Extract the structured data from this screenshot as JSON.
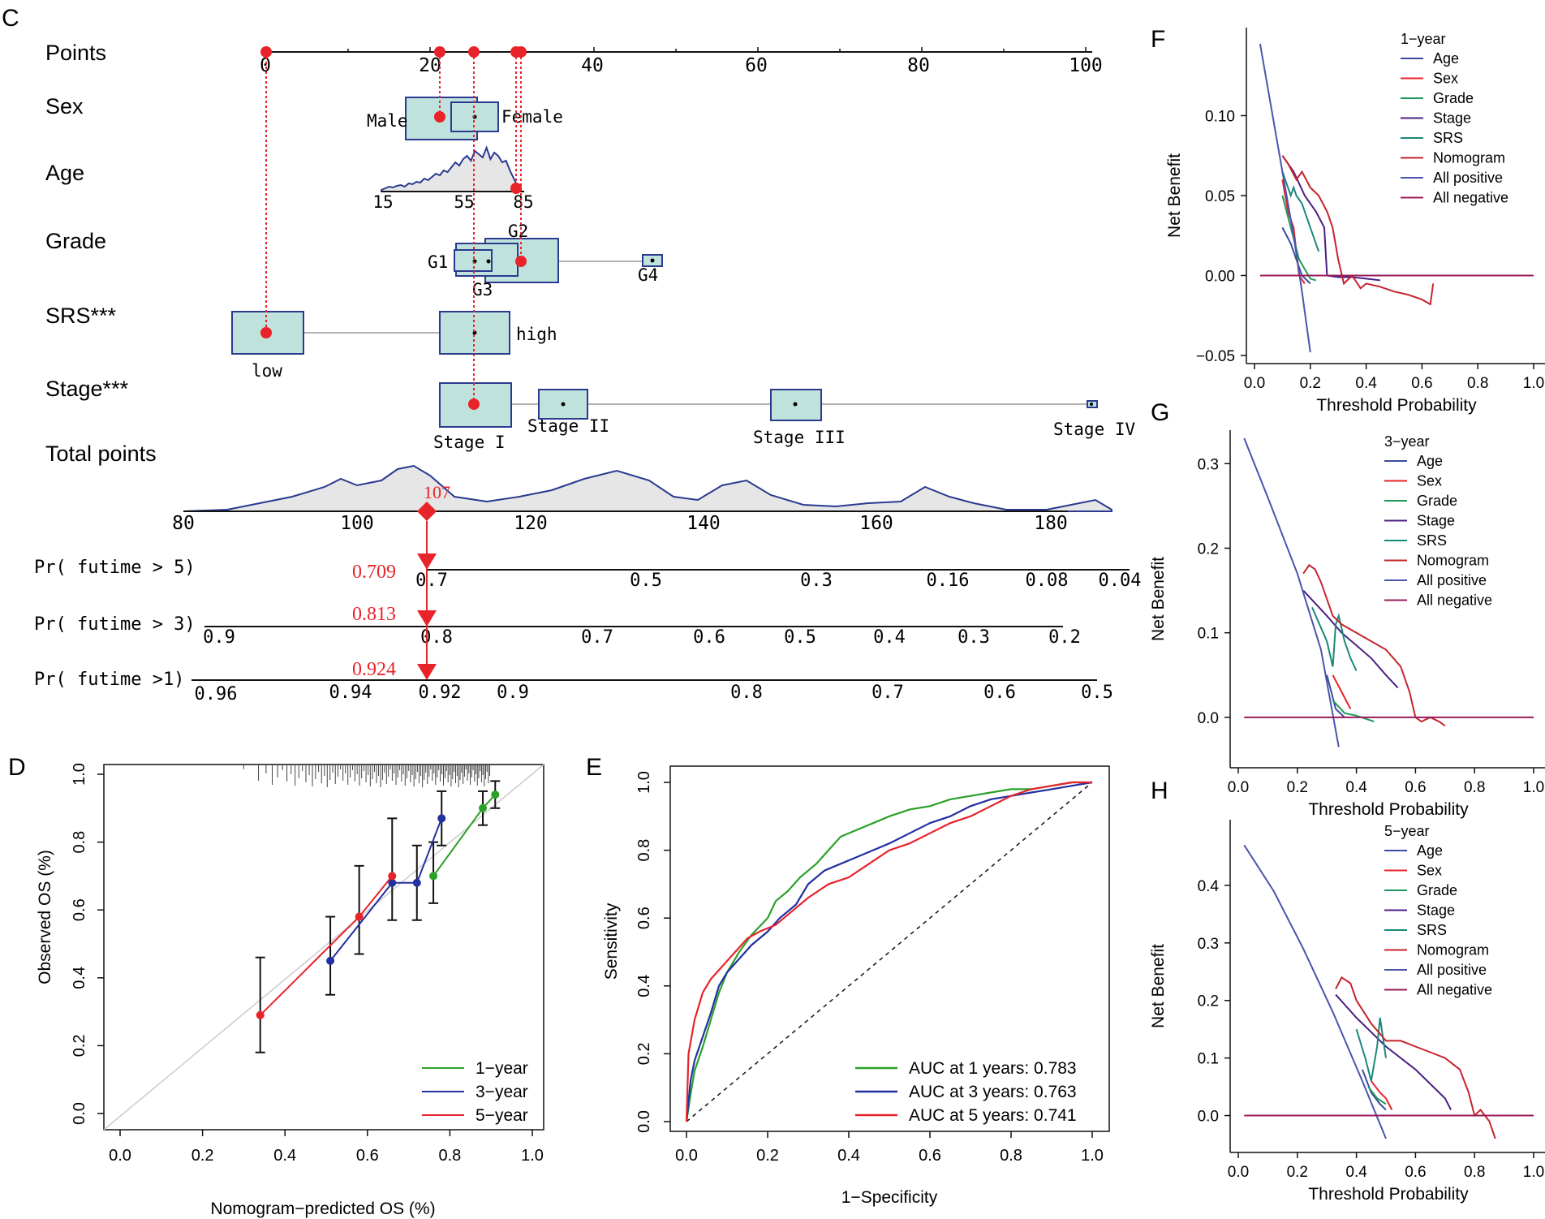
{
  "panel_labels": {
    "C": "C",
    "D": "D",
    "E": "E",
    "F": "F",
    "G": "G",
    "H": "H"
  },
  "colors": {
    "red": "#e8232a",
    "navy": "#2b3a8f",
    "box_fill": "#bfe3dc",
    "green": "#2aa12b",
    "blue": "#2230a0",
    "teal": "#19897a",
    "purple": "#4b1f84",
    "magenta": "#9a1a5a",
    "dcaRed": "#c4242c",
    "ap": "#4a54ad"
  },
  "chart_data": [
    {
      "type": "nomogram",
      "panel": "C",
      "rows": [
        "Points",
        "Sex",
        "Age",
        "Grade",
        "SRS***",
        "Stage***",
        "Total points"
      ],
      "points_axis": {
        "min": 0,
        "max": 100,
        "ticks": [
          "0",
          "20",
          "40",
          "60",
          "80",
          "100"
        ]
      },
      "sex": {
        "categories": [
          "Male",
          "Female"
        ]
      },
      "age": {
        "ticks": [
          "15",
          "55",
          "85"
        ]
      },
      "grade": {
        "categories": [
          "G1",
          "G2",
          "G3",
          "G4"
        ]
      },
      "srs": {
        "categories": [
          "low",
          "high"
        ]
      },
      "stage": {
        "categories": [
          "Stage I",
          "Stage II",
          "Stage III",
          "Stage IV"
        ]
      },
      "total_points": {
        "ticks": [
          "80",
          "100",
          "120",
          "140",
          "160",
          "180"
        ],
        "selected": "107"
      },
      "probabilities": [
        {
          "label": "Pr( futime > 5)",
          "value": "0.709",
          "ticks": [
            "0.7",
            "0.5",
            "0.3",
            "0.16",
            "0.08",
            "0.04"
          ]
        },
        {
          "label": "Pr( futime > 3)",
          "value": "0.813",
          "ticks": [
            "0.9",
            "0.8",
            "0.7",
            "0.6",
            "0.5",
            "0.4",
            "0.3",
            "0.2"
          ]
        },
        {
          "label": "Pr( futime >1)",
          "value": "0.924",
          "ticks": [
            "0.96",
            "0.94",
            "0.92",
            "0.9",
            "0.8",
            "0.7",
            "0.6",
            "0.5"
          ]
        }
      ]
    },
    {
      "type": "line",
      "panel": "D",
      "xlabel": "Nomogram−predicted OS (%)",
      "ylabel": "Observed OS (%)",
      "xlim": [
        0,
        1
      ],
      "ylim": [
        0,
        1
      ],
      "ticks": [
        "0.0",
        "0.2",
        "0.4",
        "0.6",
        "0.8",
        "1.0"
      ],
      "series": [
        {
          "name": "1−year",
          "x": [
            0.76,
            0.88,
            0.91
          ],
          "y": [
            0.7,
            0.9,
            0.94
          ]
        },
        {
          "name": "3−year",
          "x": [
            0.51,
            0.66,
            0.72,
            0.78
          ],
          "y": [
            0.45,
            0.68,
            0.68,
            0.87
          ]
        },
        {
          "name": "5−year",
          "x": [
            0.34,
            0.58,
            0.66
          ],
          "y": [
            0.29,
            0.58,
            0.7
          ]
        }
      ]
    },
    {
      "type": "line",
      "panel": "E",
      "xlabel": "1−Specificity",
      "ylabel": "Sensitivity",
      "xlim": [
        0,
        1
      ],
      "ylim": [
        0,
        1
      ],
      "ticks": [
        "0.0",
        "0.2",
        "0.4",
        "0.6",
        "0.8",
        "1.0"
      ],
      "series": [
        {
          "name": "AUC at 1 years: 0.783",
          "x": [
            0,
            0.01,
            0.02,
            0.04,
            0.06,
            0.08,
            0.1,
            0.13,
            0.16,
            0.2,
            0.22,
            0.25,
            0.28,
            0.32,
            0.35,
            0.38,
            0.42,
            0.46,
            0.5,
            0.55,
            0.6,
            0.65,
            0.7,
            0.75,
            0.8,
            0.85,
            0.9,
            0.95,
            1.0
          ],
          "y": [
            0,
            0.08,
            0.15,
            0.22,
            0.3,
            0.38,
            0.44,
            0.5,
            0.55,
            0.6,
            0.65,
            0.68,
            0.72,
            0.76,
            0.8,
            0.84,
            0.86,
            0.88,
            0.9,
            0.92,
            0.93,
            0.95,
            0.96,
            0.97,
            0.98,
            0.98,
            0.99,
            1.0,
            1.0
          ]
        },
        {
          "name": "AUC at 3 years: 0.763",
          "x": [
            0,
            0.01,
            0.02,
            0.04,
            0.06,
            0.08,
            0.1,
            0.13,
            0.16,
            0.2,
            0.23,
            0.27,
            0.3,
            0.34,
            0.38,
            0.42,
            0.46,
            0.5,
            0.55,
            0.6,
            0.65,
            0.7,
            0.75,
            0.8,
            0.85,
            0.9,
            0.95,
            1.0
          ],
          "y": [
            0,
            0.12,
            0.18,
            0.25,
            0.32,
            0.4,
            0.44,
            0.48,
            0.52,
            0.56,
            0.6,
            0.64,
            0.7,
            0.74,
            0.76,
            0.78,
            0.8,
            0.82,
            0.85,
            0.88,
            0.9,
            0.93,
            0.95,
            0.96,
            0.97,
            0.98,
            0.99,
            1.0
          ]
        },
        {
          "name": "AUC at 5 years: 0.741",
          "x": [
            0,
            0.005,
            0.02,
            0.04,
            0.06,
            0.09,
            0.12,
            0.15,
            0.18,
            0.22,
            0.26,
            0.3,
            0.35,
            0.4,
            0.45,
            0.5,
            0.55,
            0.6,
            0.65,
            0.7,
            0.75,
            0.8,
            0.85,
            0.9,
            0.95,
            1.0
          ],
          "y": [
            0,
            0.2,
            0.3,
            0.38,
            0.42,
            0.46,
            0.5,
            0.54,
            0.56,
            0.58,
            0.62,
            0.66,
            0.7,
            0.72,
            0.76,
            0.8,
            0.82,
            0.85,
            0.88,
            0.9,
            0.93,
            0.96,
            0.98,
            0.99,
            1.0,
            1.0
          ]
        }
      ]
    },
    {
      "type": "line",
      "panel": "F",
      "title": "1−year",
      "xlabel": "Threshold Probability",
      "ylabel": "Net Benefit",
      "xlim": [
        0,
        1
      ],
      "ylim": [
        -0.05,
        0.15
      ],
      "xticks": [
        "0.0",
        "0.2",
        "0.4",
        "0.6",
        "0.8",
        "1.0"
      ],
      "yticks": [
        {
          "v": -0.05,
          "label": "−0.05"
        },
        {
          "v": 0,
          "label": "0.00"
        },
        {
          "v": 0.05,
          "label": "0.05"
        },
        {
          "v": 0.1,
          "label": "0.10"
        }
      ],
      "series": [
        {
          "name": "Age",
          "x": [
            0.1,
            0.13,
            0.15,
            0.17,
            0.2
          ],
          "y": [
            0.03,
            0.02,
            0.01,
            0.0,
            -0.005
          ]
        },
        {
          "name": "Sex",
          "x": [
            0.1,
            0.12,
            0.14,
            0.16,
            0.18
          ],
          "y": [
            0.06,
            0.04,
            0.03,
            0.0,
            -0.005
          ]
        },
        {
          "name": "Grade",
          "x": [
            0.1,
            0.13,
            0.16,
            0.2,
            0.22
          ],
          "y": [
            0.05,
            0.03,
            0.01,
            -0.002,
            -0.003
          ]
        },
        {
          "name": "Stage",
          "x": [
            0.1,
            0.14,
            0.18,
            0.22,
            0.25,
            0.26,
            0.3,
            0.35,
            0.4,
            0.45
          ],
          "y": [
            0.075,
            0.065,
            0.05,
            0.04,
            0.03,
            0.0,
            -0.001,
            -0.001,
            -0.002,
            -0.003
          ]
        },
        {
          "name": "SRS",
          "x": [
            0.1,
            0.13,
            0.14,
            0.15,
            0.17,
            0.2,
            0.23
          ],
          "y": [
            0.065,
            0.05,
            0.055,
            0.05,
            0.045,
            0.03,
            0.015
          ]
        },
        {
          "name": "Nomogram",
          "x": [
            0.1,
            0.12,
            0.15,
            0.17,
            0.2,
            0.23,
            0.26,
            0.28,
            0.3,
            0.32,
            0.35,
            0.38,
            0.4,
            0.45,
            0.5,
            0.55,
            0.6,
            0.63,
            0.64
          ],
          "y": [
            0.075,
            0.07,
            0.06,
            0.065,
            0.055,
            0.05,
            0.04,
            0.03,
            0.01,
            -0.005,
            0.0,
            -0.008,
            -0.005,
            -0.007,
            -0.01,
            -0.012,
            -0.015,
            -0.018,
            -0.005
          ]
        },
        {
          "name": "All positive",
          "x": [
            0.02,
            0.05,
            0.08,
            0.11,
            0.14,
            0.17,
            0.2
          ],
          "y": [
            0.145,
            0.115,
            0.085,
            0.055,
            0.025,
            -0.01,
            -0.048
          ]
        },
        {
          "name": "All negative",
          "x": [
            0.02,
            1.0
          ],
          "y": [
            0,
            0
          ]
        }
      ]
    },
    {
      "type": "line",
      "panel": "G",
      "title": "3−year",
      "xlabel": "Threshold Probability",
      "ylabel": "Net Benefit",
      "xlim": [
        0,
        1
      ],
      "ylim": [
        -0.05,
        0.33
      ],
      "xticks": [
        "0.0",
        "0.2",
        "0.4",
        "0.6",
        "0.8",
        "1.0"
      ],
      "yticks": [
        {
          "v": 0,
          "label": "0.0"
        },
        {
          "v": 0.1,
          "label": "0.1"
        },
        {
          "v": 0.2,
          "label": "0.2"
        },
        {
          "v": 0.3,
          "label": "0.3"
        }
      ],
      "series": [
        {
          "name": "Age",
          "x": [
            0.3,
            0.33,
            0.36
          ],
          "y": [
            0.05,
            0.01,
            0.0
          ]
        },
        {
          "name": "Sex",
          "x": [
            0.32,
            0.35,
            0.38
          ],
          "y": [
            0.05,
            0.03,
            0.01
          ]
        },
        {
          "name": "Grade",
          "x": [
            0.32,
            0.36,
            0.4,
            0.46
          ],
          "y": [
            0.02,
            0.005,
            0.002,
            -0.005
          ]
        },
        {
          "name": "Stage",
          "x": [
            0.22,
            0.3,
            0.35,
            0.4,
            0.45,
            0.5,
            0.54
          ],
          "y": [
            0.15,
            0.12,
            0.1,
            0.085,
            0.07,
            0.05,
            0.035
          ]
        },
        {
          "name": "SRS",
          "x": [
            0.25,
            0.3,
            0.32,
            0.33,
            0.34,
            0.36,
            0.38,
            0.4
          ],
          "y": [
            0.13,
            0.09,
            0.06,
            0.11,
            0.12,
            0.09,
            0.07,
            0.055
          ]
        },
        {
          "name": "Nomogram",
          "x": [
            0.22,
            0.24,
            0.26,
            0.28,
            0.32,
            0.35,
            0.4,
            0.45,
            0.5,
            0.55,
            0.58,
            0.6,
            0.62,
            0.65,
            0.68,
            0.7
          ],
          "y": [
            0.17,
            0.18,
            0.175,
            0.16,
            0.12,
            0.11,
            0.1,
            0.09,
            0.08,
            0.06,
            0.03,
            0.0,
            -0.005,
            0.0,
            -0.005,
            -0.01
          ]
        },
        {
          "name": "All positive",
          "x": [
            0.02,
            0.1,
            0.2,
            0.28,
            0.34
          ],
          "y": [
            0.33,
            0.26,
            0.17,
            0.08,
            -0.035
          ]
        },
        {
          "name": "All negative",
          "x": [
            0.02,
            1.0
          ],
          "y": [
            0,
            0
          ]
        }
      ]
    },
    {
      "type": "line",
      "panel": "H",
      "title": "5−year",
      "xlabel": "Threshold Probability",
      "ylabel": "Net Benefit",
      "xlim": [
        0,
        1
      ],
      "ylim": [
        -0.05,
        0.5
      ],
      "xticks": [
        "0.0",
        "0.2",
        "0.4",
        "0.6",
        "0.8",
        "1.0"
      ],
      "yticks": [
        {
          "v": 0,
          "label": "0.0"
        },
        {
          "v": 0.1,
          "label": "0.1"
        },
        {
          "v": 0.2,
          "label": "0.2"
        },
        {
          "v": 0.3,
          "label": "0.3"
        },
        {
          "v": 0.4,
          "label": "0.4"
        }
      ],
      "series": [
        {
          "name": "Age",
          "x": [
            0.42,
            0.45,
            0.48,
            0.5
          ],
          "y": [
            0.08,
            0.04,
            0.02,
            0.01
          ]
        },
        {
          "name": "Sex",
          "x": [
            0.45,
            0.48,
            0.5,
            0.52
          ],
          "y": [
            0.06,
            0.04,
            0.03,
            0.01
          ]
        },
        {
          "name": "Grade",
          "x": [
            0.44,
            0.47,
            0.5
          ],
          "y": [
            0.05,
            0.03,
            0.02
          ]
        },
        {
          "name": "Stage",
          "x": [
            0.33,
            0.4,
            0.5,
            0.6,
            0.7,
            0.72
          ],
          "y": [
            0.21,
            0.17,
            0.12,
            0.08,
            0.03,
            0.01
          ]
        },
        {
          "name": "SRS",
          "x": [
            0.4,
            0.43,
            0.45,
            0.47,
            0.48,
            0.5
          ],
          "y": [
            0.15,
            0.1,
            0.06,
            0.12,
            0.17,
            0.1
          ]
        },
        {
          "name": "Nomogram",
          "x": [
            0.33,
            0.35,
            0.38,
            0.4,
            0.45,
            0.5,
            0.55,
            0.6,
            0.65,
            0.7,
            0.75,
            0.78,
            0.8,
            0.82,
            0.85,
            0.87
          ],
          "y": [
            0.22,
            0.24,
            0.23,
            0.2,
            0.16,
            0.13,
            0.13,
            0.12,
            0.11,
            0.1,
            0.08,
            0.04,
            0.0,
            0.01,
            -0.01,
            -0.04
          ]
        },
        {
          "name": "All positive",
          "x": [
            0.02,
            0.12,
            0.22,
            0.32,
            0.42,
            0.5
          ],
          "y": [
            0.47,
            0.39,
            0.29,
            0.18,
            0.06,
            -0.04
          ]
        },
        {
          "name": "All negative",
          "x": [
            0.02,
            1.0
          ],
          "y": [
            0,
            0
          ]
        }
      ]
    }
  ]
}
